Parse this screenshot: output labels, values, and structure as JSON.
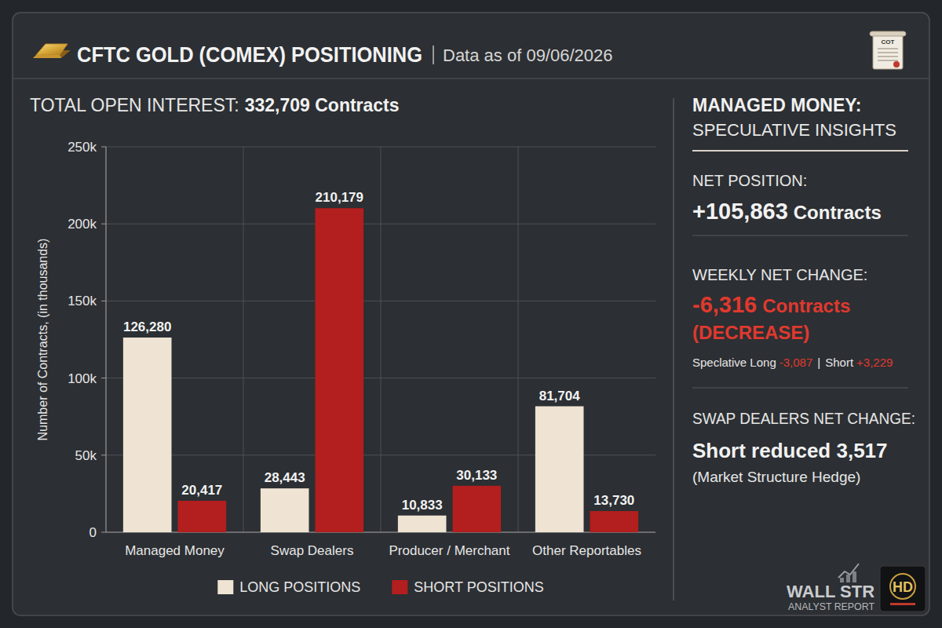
{
  "header": {
    "title": "CFTC GOLD (COMEX) POSITIONING",
    "date": "Data as of 09/06/2026",
    "doc_icon_label": "COT",
    "open_interest_label": "TOTAL OPEN INTEREST:",
    "open_interest_value": "332,709 Contracts"
  },
  "chart_data": {
    "type": "bar",
    "y_label": "Number of Contracts, (in thousands)",
    "categories": [
      "Managed Money",
      "Swap Dealers",
      "Producer / Merchant",
      "Other Reportables"
    ],
    "series": [
      {
        "name": "LONG POSITIONS",
        "color": "#efe3d3",
        "values": [
          126280,
          28443,
          10833,
          81704
        ],
        "value_labels": [
          "126,280",
          "28,443",
          "10,833",
          "81,704"
        ]
      },
      {
        "name": "SHORT POSITIONS",
        "color": "#b31e1e",
        "values": [
          20417,
          210179,
          30133,
          13730
        ],
        "value_labels": [
          "20,417",
          "210,179",
          "30,133",
          "13,730"
        ]
      }
    ],
    "ylim": [
      0,
      250000
    ],
    "yticks": [
      0,
      {
        "value": 50000,
        "label": "50k"
      },
      {
        "value": 100000,
        "label": "100k"
      },
      {
        "value": 150000,
        "label": "150k"
      },
      {
        "value": 200000,
        "label": "200k"
      },
      {
        "value": 250000,
        "label": "250k"
      }
    ],
    "grid": true,
    "data_labels": true,
    "legend": "bottom"
  },
  "insights": {
    "heading": "MANAGED MONEY:",
    "subheading": "SPECULATIVE INSIGHTS",
    "net_position_label": "NET POSITION:",
    "net_position_value": "+105,863",
    "net_position_unit": "Contracts",
    "weekly_change_label": "WEEKLY NET CHANGE:",
    "weekly_change_value": "-6,316",
    "weekly_change_unit": "Contracts",
    "weekly_change_note": "(DECREASE)",
    "breakdown": {
      "long_label": "Speclative Long",
      "long_value": "-3,087",
      "separator": "|",
      "short_label": "Short",
      "short_value": "+3,229"
    },
    "swap_label": "SWAP DEALERS NET CHANGE:",
    "swap_value": "Short reduced 3,517",
    "swap_note": "(Market Structure Hedge)"
  },
  "footer": {
    "brand_line1": "WALL STR",
    "brand_line2": "ANALYST REPORT",
    "logo": "HD"
  }
}
